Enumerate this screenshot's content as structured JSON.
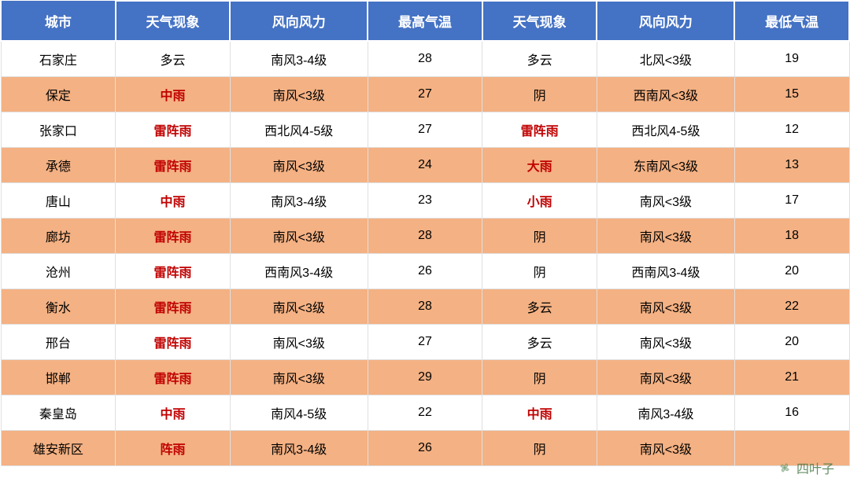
{
  "table": {
    "type": "table",
    "header_bg": "#4472c4",
    "header_text_color": "#ffffff",
    "header_fontsize": 17,
    "cell_fontsize": 16,
    "row_white_bg": "#ffffff",
    "row_orange_bg": "#f4b183",
    "highlight_text_color": "#c00000",
    "normal_text_color": "#000000",
    "border_color": "#e0e0e0",
    "headers": {
      "city": "城市",
      "weather1": "天气现象",
      "wind1": "风向风力",
      "high_temp": "最高气温",
      "weather2": "天气现象",
      "wind2": "风向风力",
      "low_temp": "最低气温"
    },
    "rows": [
      {
        "city": "石家庄",
        "w1": "多云",
        "w1_red": false,
        "wind1": "南风3-4级",
        "high": "28",
        "w2": "多云",
        "w2_red": false,
        "wind2": "北风<3级",
        "low": "19",
        "stripe": "white"
      },
      {
        "city": "保定",
        "w1": "中雨",
        "w1_red": true,
        "wind1": "南风<3级",
        "high": "27",
        "w2": "阴",
        "w2_red": false,
        "wind2": "西南风<3级",
        "low": "15",
        "stripe": "orange"
      },
      {
        "city": "张家口",
        "w1": "雷阵雨",
        "w1_red": true,
        "wind1": "西北风4-5级",
        "high": "27",
        "w2": "雷阵雨",
        "w2_red": true,
        "wind2": "西北风4-5级",
        "low": "12",
        "stripe": "white"
      },
      {
        "city": "承德",
        "w1": "雷阵雨",
        "w1_red": true,
        "wind1": "南风<3级",
        "high": "24",
        "w2": "大雨",
        "w2_red": true,
        "wind2": "东南风<3级",
        "low": "13",
        "stripe": "orange"
      },
      {
        "city": "唐山",
        "w1": "中雨",
        "w1_red": true,
        "wind1": "南风3-4级",
        "high": "23",
        "w2": "小雨",
        "w2_red": true,
        "wind2": "南风<3级",
        "low": "17",
        "stripe": "white"
      },
      {
        "city": "廊坊",
        "w1": "雷阵雨",
        "w1_red": true,
        "wind1": "南风<3级",
        "high": "28",
        "w2": "阴",
        "w2_red": false,
        "wind2": "南风<3级",
        "low": "18",
        "stripe": "orange"
      },
      {
        "city": "沧州",
        "w1": "雷阵雨",
        "w1_red": true,
        "wind1": "西南风3-4级",
        "high": "26",
        "w2": "阴",
        "w2_red": false,
        "wind2": "西南风3-4级",
        "low": "20",
        "stripe": "white"
      },
      {
        "city": "衡水",
        "w1": "雷阵雨",
        "w1_red": true,
        "wind1": "南风<3级",
        "high": "28",
        "w2": "多云",
        "w2_red": false,
        "wind2": "南风<3级",
        "low": "22",
        "stripe": "orange"
      },
      {
        "city": "邢台",
        "w1": "雷阵雨",
        "w1_red": true,
        "wind1": "南风<3级",
        "high": "27",
        "w2": "多云",
        "w2_red": false,
        "wind2": "南风<3级",
        "low": "20",
        "stripe": "white"
      },
      {
        "city": "邯郸",
        "w1": "雷阵雨",
        "w1_red": true,
        "wind1": "南风<3级",
        "high": "29",
        "w2": "阴",
        "w2_red": false,
        "wind2": "南风<3级",
        "low": "21",
        "stripe": "orange"
      },
      {
        "city": "秦皇岛",
        "w1": "中雨",
        "w1_red": true,
        "wind1": "南风4-5级",
        "high": "22",
        "w2": "中雨",
        "w2_red": true,
        "wind2": "南风3-4级",
        "low": "16",
        "stripe": "white"
      },
      {
        "city": "雄安新区",
        "w1": "阵雨",
        "w1_red": true,
        "wind1": "南风3-4级",
        "high": "26",
        "w2": "阴",
        "w2_red": false,
        "wind2": "南风<3级",
        "low": "",
        "stripe": "orange"
      }
    ]
  },
  "watermark": {
    "text": "四叶子",
    "color": "#4a7a4a"
  }
}
